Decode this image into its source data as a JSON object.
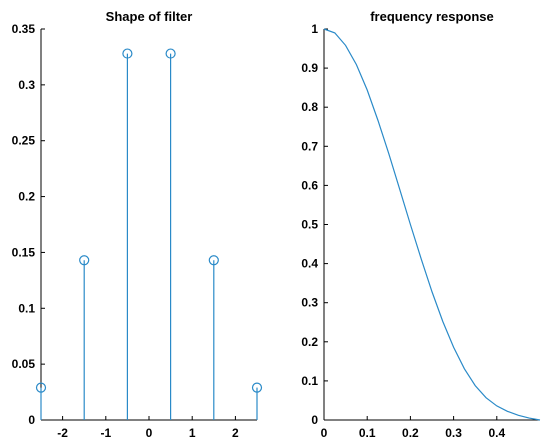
{
  "chart_data": [
    {
      "type": "stem",
      "title": "Shape of filter",
      "xlabel": "",
      "ylabel": "",
      "xlim": [
        -2.5,
        2.5
      ],
      "ylim": [
        0,
        0.35
      ],
      "xticks": [
        -2,
        -1,
        0,
        1,
        2
      ],
      "yticks": [
        0,
        0.05,
        0.1,
        0.15,
        0.2,
        0.25,
        0.3,
        0.35
      ],
      "x": [
        -2.5,
        -1.5,
        -0.5,
        0.5,
        1.5,
        2.5
      ],
      "values": [
        0.029,
        0.143,
        0.328,
        0.328,
        0.143,
        0.029
      ],
      "color": "#2a8ac8",
      "grid": false
    },
    {
      "type": "line",
      "title": "frequency response",
      "xlabel": "",
      "ylabel": "",
      "xlim": [
        0,
        0.5
      ],
      "ylim": [
        0,
        1
      ],
      "xticks": [
        0,
        0.1,
        0.2,
        0.3,
        0.4
      ],
      "yticks": [
        0,
        0.1,
        0.2,
        0.3,
        0.4,
        0.5,
        0.6,
        0.7,
        0.8,
        0.9,
        1
      ],
      "x": [
        0,
        0.025,
        0.05,
        0.075,
        0.1,
        0.125,
        0.15,
        0.175,
        0.2,
        0.225,
        0.25,
        0.275,
        0.3,
        0.325,
        0.35,
        0.375,
        0.4,
        0.425,
        0.45,
        0.475,
        0.5
      ],
      "values": [
        1,
        0.99,
        0.958,
        0.909,
        0.844,
        0.766,
        0.681,
        0.591,
        0.5,
        0.412,
        0.328,
        0.252,
        0.186,
        0.131,
        0.088,
        0.057,
        0.036,
        0.022,
        0.012,
        0.005,
        0
      ],
      "color": "#2a8ac8",
      "grid": false
    }
  ]
}
